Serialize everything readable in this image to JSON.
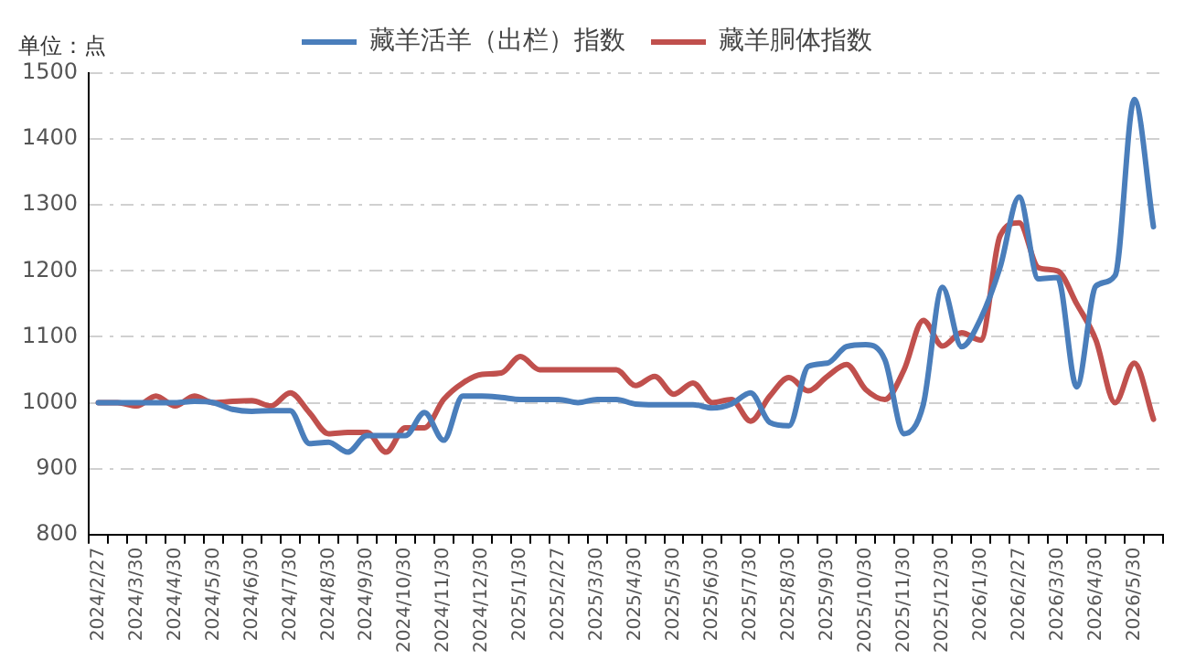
{
  "chart_data": {
    "type": "line",
    "ylabel": "单位：点",
    "categories": [
      "2024/2/27",
      null,
      "2024/3/30",
      null,
      "2024/4/30",
      null,
      "2024/5/30",
      null,
      "2024/6/30",
      null,
      "2024/7/30",
      null,
      "2024/8/30",
      null,
      "2024/9/30",
      null,
      "2024/10/30",
      null,
      "2024/11/30",
      null,
      "2024/12/30",
      null,
      "2025/1/30",
      null,
      "2025/2/27",
      null,
      "2025/3/30",
      null,
      "2025/4/30",
      null,
      "2025/5/30",
      null,
      "2025/6/30",
      null,
      "2025/7/30",
      null,
      "2025/8/30",
      null,
      "2025/9/30",
      null,
      "2025/10/30",
      null,
      "2025/11/30",
      null,
      "2025/12/30",
      null,
      "2026/1/30",
      null,
      "2026/2/27",
      null,
      "2026/3/30",
      null,
      "2026/4/30",
      null,
      "2026/5/30",
      null
    ],
    "series": [
      {
        "name": "藏羊活羊（出栏）指数",
        "color": "#4a7ebb",
        "values": [
          1000,
          1000,
          1000,
          1000,
          1000,
          1002,
          1000,
          990,
          987,
          988,
          988,
          938,
          940,
          925,
          950,
          950,
          950,
          985,
          943,
          1010,
          1010,
          1008,
          1005,
          1005,
          1005,
          1000,
          1005,
          1005,
          998,
          997,
          997,
          997,
          992,
          998,
          1015,
          970,
          965,
          1055,
          1060,
          1085,
          1088,
          1065,
          953,
          997,
          1175,
          1085,
          1128,
          1205,
          1312,
          1188,
          1190,
          1024,
          1177,
          1193,
          1460,
          1267
        ]
      },
      {
        "name": "藏羊胴体指数",
        "color": "#c0504d",
        "values": [
          1000,
          1000,
          995,
          1010,
          995,
          1010,
          1000,
          1002,
          1003,
          995,
          1015,
          985,
          953,
          955,
          955,
          925,
          962,
          962,
          1005,
          1030,
          1043,
          1045,
          1070,
          1050,
          1050,
          1050,
          1050,
          1050,
          1026,
          1040,
          1013,
          1030,
          1000,
          1005,
          972,
          1010,
          1038,
          1018,
          1040,
          1058,
          1020,
          1005,
          1050,
          1125,
          1086,
          1106,
          1095,
          1253,
          1273,
          1205,
          1200,
          1150,
          1095,
          1000,
          1060,
          975
        ]
      }
    ],
    "ylim": [
      800,
      1500
    ],
    "yticks": [
      800,
      900,
      1000,
      1100,
      1200,
      1300,
      1400,
      1500
    ],
    "grid": "y",
    "legend": "top",
    "line_style": "solid",
    "marker": "none"
  }
}
